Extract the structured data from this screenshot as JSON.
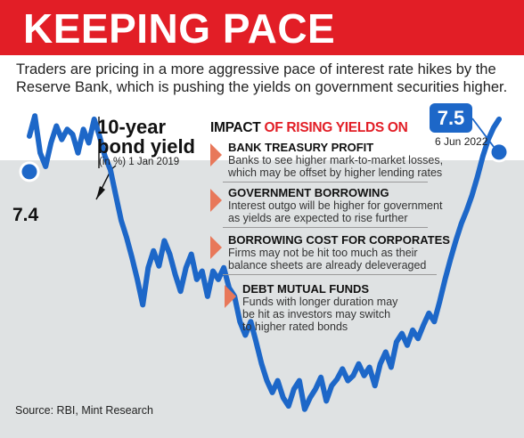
{
  "header": {
    "title": "KEEPING PACE",
    "subtitle": "Traders are pricing in a more aggressive pace of interest rate hikes by the Reserve Bank, which is pushing the yields on government securities higher.",
    "accent_color": "#e21e26"
  },
  "callout": {
    "title_line1": "10-year",
    "title_line2": "bond yield",
    "subtitle": "(in %) 1 Jan 2019"
  },
  "impact": {
    "heading_part1": "IMPACT",
    "heading_part2": "OF RISING YIELDS ON",
    "items": [
      {
        "title": "BANK TREASURY PROFIT",
        "line1": "Banks to see higher mark-to-market losses,",
        "line2": "which may be offset by higher lending rates"
      },
      {
        "title": "GOVERNMENT BORROWING",
        "line1": "Interest outgo will be higher for government",
        "line2": "as yields are expected to rise further"
      },
      {
        "title": "BORROWING COST FOR CORPORATES",
        "line1": "Firms may not be hit too much as their",
        "line2": "balance sheets are already deleveraged"
      },
      {
        "title": "DEBT MUTUAL FUNDS",
        "line1": "Funds with longer duration may",
        "line2": "be hit as investors may switch",
        "line3": "to higher rated bonds"
      }
    ]
  },
  "source": "Source: RBI, Mint Research",
  "chart_data": {
    "type": "line",
    "series": [
      {
        "color": "#1d67c8",
        "start": {
          "date": "1 Jan 2019",
          "value": 7.4
        },
        "end": {
          "date": "6 Jun 2022",
          "value": 7.5
        },
        "values": [
          7.4,
          7.52,
          7.3,
          7.22,
          7.36,
          7.46,
          7.38,
          7.44,
          7.41,
          7.3,
          7.44,
          7.36,
          7.5,
          7.4,
          7.28,
          7.2,
          7.05,
          6.9,
          6.8,
          6.68,
          6.55,
          6.4,
          6.62,
          6.72,
          6.63,
          6.78,
          6.7,
          6.58,
          6.48,
          6.62,
          6.7,
          6.55,
          6.6,
          6.45,
          6.6,
          6.55,
          6.62,
          6.5,
          6.45,
          6.3,
          6.22,
          6.3,
          6.18,
          6.05,
          5.95,
          5.88,
          5.95,
          5.85,
          5.8,
          5.9,
          5.95,
          5.78,
          5.85,
          5.9,
          5.97,
          5.83,
          5.92,
          5.96,
          6.02,
          5.95,
          5.98,
          6.05,
          5.98,
          6.03,
          5.92,
          6.05,
          6.12,
          6.03,
          6.18,
          6.23,
          6.16,
          6.25,
          6.2,
          6.28,
          6.35,
          6.3,
          6.42,
          6.55,
          6.67,
          6.78,
          6.88,
          6.96,
          7.05,
          7.16,
          7.28,
          7.38,
          7.45,
          7.5
        ]
      }
    ]
  }
}
